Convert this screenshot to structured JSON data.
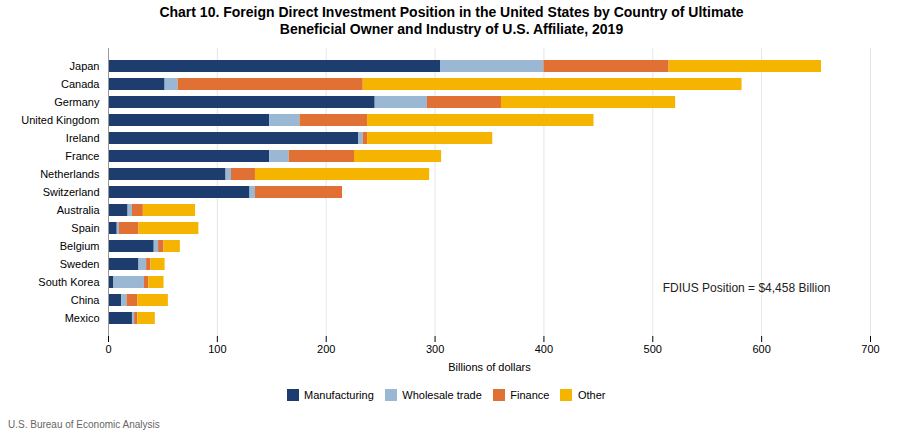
{
  "chart_data": {
    "type": "bar",
    "orientation": "horizontal",
    "stacked": true,
    "title": "Chart 10. Foreign Direct Investment Position in the United States by Country of Ultimate\nBeneficial Owner and Industry of U.S. Affiliate, 2019",
    "xlabel": "Billions of dollars",
    "annotation": "FDIUS Position = $4,458 Billion",
    "source": "U.S. Bureau of Economic Analysis",
    "categories": [
      "Japan",
      "Canada",
      "Germany",
      "United Kingdom",
      "Ireland",
      "France",
      "Netherlands",
      "Switzerland",
      "Australia",
      "Spain",
      "Belgium",
      "Sweden",
      "South Korea",
      "China",
      "Mexico"
    ],
    "series": [
      {
        "name": "Manufacturing",
        "color": "#1c3d6e",
        "values": [
          305,
          52,
          245,
          148,
          230,
          148,
          108,
          130,
          18,
          8,
          42,
          28,
          5,
          12,
          22
        ]
      },
      {
        "name": "Wholesale trade",
        "color": "#9ab8d4",
        "values": [
          95,
          12,
          48,
          28,
          4,
          18,
          5,
          5,
          4,
          2,
          4,
          7,
          28,
          5,
          2
        ]
      },
      {
        "name": "Finance",
        "color": "#e07033",
        "values": [
          115,
          170,
          68,
          62,
          4,
          60,
          22,
          80,
          10,
          18,
          5,
          4,
          4,
          10,
          3
        ]
      },
      {
        "name": "Other",
        "color": "#f5b400",
        "values": [
          140,
          348,
          160,
          208,
          115,
          80,
          160,
          0,
          48,
          55,
          15,
          13,
          14,
          28,
          16
        ]
      }
    ],
    "xlim": [
      0,
      700
    ],
    "xticks": [
      0,
      100,
      200,
      300,
      400,
      500,
      600,
      700
    ],
    "grid": true,
    "legend": "bottom"
  }
}
